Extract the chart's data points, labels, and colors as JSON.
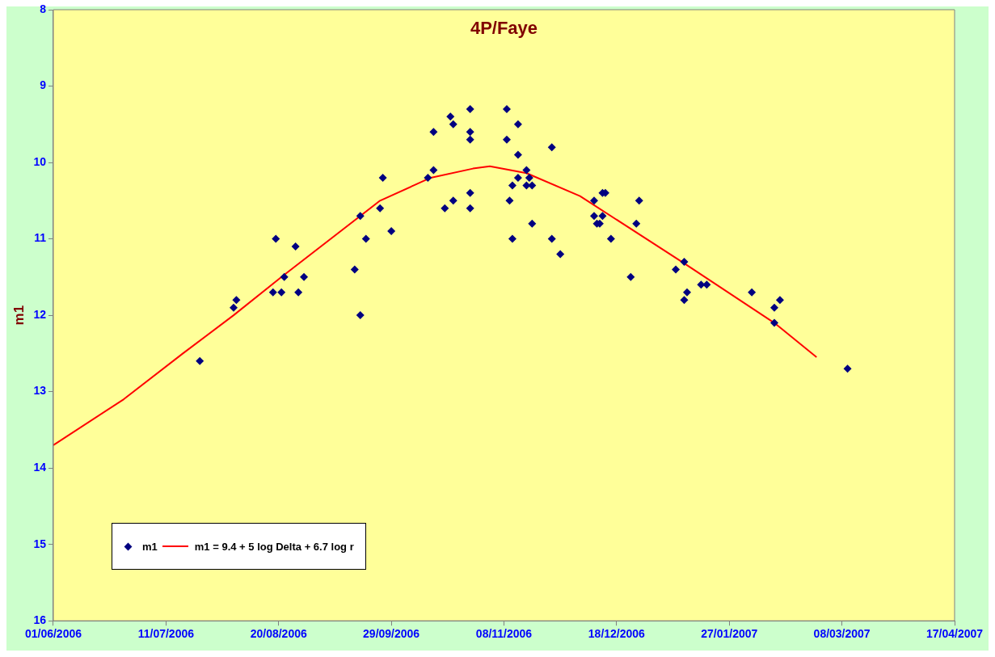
{
  "chart_data": {
    "type": "scatter",
    "title": "4P/Faye",
    "ylabel": "m1",
    "xlim": [
      "2006-06-01",
      "2007-04-17"
    ],
    "xticks": [
      {
        "value": "2006-06-01",
        "label": "01/06/2006"
      },
      {
        "value": "2006-07-11",
        "label": "11/07/2006"
      },
      {
        "value": "2006-08-20",
        "label": "20/08/2006"
      },
      {
        "value": "2006-09-29",
        "label": "29/09/2006"
      },
      {
        "value": "2006-11-08",
        "label": "08/11/2006"
      },
      {
        "value": "2006-12-18",
        "label": "18/12/2006"
      },
      {
        "value": "2007-01-27",
        "label": "27/01/2007"
      },
      {
        "value": "2007-03-08",
        "label": "08/03/2007"
      },
      {
        "value": "2007-04-17",
        "label": "17/04/2007"
      }
    ],
    "ylim": [
      16,
      8
    ],
    "yticks": [
      8,
      9,
      10,
      11,
      12,
      13,
      14,
      15,
      16
    ],
    "grid": false,
    "legend": "bottom left",
    "series": [
      {
        "name": "m1",
        "type": "scatter",
        "marker": "diamond",
        "color": "#000080",
        "x": [
          "2006-07-23",
          "2006-08-04",
          "2006-08-05",
          "2006-08-18",
          "2006-08-19",
          "2006-08-21",
          "2006-08-22",
          "2006-08-26",
          "2006-08-27",
          "2006-08-29",
          "2006-09-16",
          "2006-09-18",
          "2006-09-18",
          "2006-09-20",
          "2006-09-25",
          "2006-09-26",
          "2006-09-29",
          "2006-10-14",
          "2006-10-20",
          "2006-10-21",
          "2006-10-27",
          "2006-10-27",
          "2006-10-27",
          "2006-11-09",
          "2006-11-13",
          "2006-11-09",
          "2006-11-25",
          "2006-11-13",
          "2006-10-14",
          "2006-10-12",
          "2006-11-16",
          "2006-11-13",
          "2006-11-17",
          "2006-11-11",
          "2006-11-16",
          "2006-11-18",
          "2006-10-27",
          "2006-10-21",
          "2006-10-18",
          "2006-10-27",
          "2006-11-10",
          "2006-11-18",
          "2006-11-11",
          "2006-11-25",
          "2006-11-28",
          "2006-12-13",
          "2006-12-14",
          "2006-12-10",
          "2006-12-26",
          "2006-12-10",
          "2006-12-13",
          "2006-12-11",
          "2006-12-12",
          "2006-12-25",
          "2006-12-16",
          "2006-12-23",
          "2007-01-11",
          "2007-01-08",
          "2007-01-17",
          "2007-01-19",
          "2007-01-12",
          "2007-01-11",
          "2007-02-04",
          "2007-02-14",
          "2007-02-12",
          "2007-02-12",
          "2007-03-10"
        ],
        "values": [
          12.6,
          11.9,
          11.8,
          11.7,
          11.0,
          11.7,
          11.5,
          11.1,
          11.7,
          11.5,
          11.4,
          12.0,
          10.7,
          11.0,
          10.6,
          10.2,
          10.9,
          9.6,
          9.4,
          9.5,
          9.3,
          9.6,
          9.7,
          9.3,
          9.5,
          9.7,
          9.8,
          9.9,
          10.1,
          10.2,
          10.1,
          10.2,
          10.2,
          10.3,
          10.3,
          10.3,
          10.4,
          10.5,
          10.6,
          10.6,
          10.5,
          10.8,
          11.0,
          11.0,
          11.2,
          10.4,
          10.4,
          10.5,
          10.5,
          10.7,
          10.7,
          10.8,
          10.8,
          10.8,
          11.0,
          11.5,
          11.3,
          11.4,
          11.6,
          11.6,
          11.7,
          11.8,
          11.7,
          11.8,
          11.9,
          12.1,
          12.7
        ]
      },
      {
        "name": "m1 = 9.4 + 5 log Delta + 6.7 log r",
        "type": "line",
        "marker": "none",
        "line_style": "solid",
        "color": "#ff0000",
        "x": [
          "2006-06-01",
          "2006-06-26",
          "2006-07-17",
          "2006-08-04",
          "2006-08-21",
          "2006-09-25",
          "2006-10-07",
          "2006-10-13",
          "2006-10-28",
          "2006-11-03",
          "2006-11-16",
          "2006-12-05",
          "2007-01-11",
          "2007-02-12",
          "2007-02-27"
        ],
        "values": [
          13.7,
          13.1,
          12.5,
          12.0,
          11.5,
          10.5,
          10.3,
          10.2,
          10.08,
          10.05,
          10.14,
          10.44,
          11.32,
          12.1,
          12.55
        ]
      }
    ]
  }
}
